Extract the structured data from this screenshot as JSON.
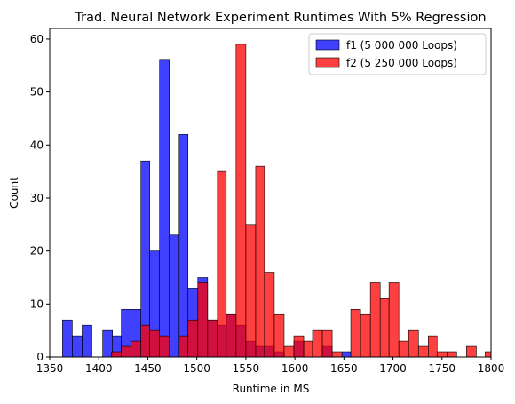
{
  "chart_data": {
    "type": "bar",
    "subtype": "overlaid-histogram",
    "title": "Trad. Neural Network Experiment Runtimes With 5% Regression",
    "xlabel": "Runtime in MS",
    "ylabel": "Count",
    "xlim": [
      1350,
      1800
    ],
    "ylim": [
      0,
      62
    ],
    "xticks": [
      "1350",
      "1400",
      "1450",
      "1500",
      "1550",
      "1600",
      "1650",
      "1700",
      "1750",
      "1800"
    ],
    "yticks": [
      "0",
      "10",
      "20",
      "30",
      "40",
      "50",
      "60"
    ],
    "grid": false,
    "legend_position": "top-right",
    "series": [
      {
        "name": "f1 (5 000 000 Loops)",
        "color": "#0000ff",
        "bins": [
          [
            1363,
            1373,
            7
          ],
          [
            1373,
            1383,
            4
          ],
          [
            1383,
            1393,
            6
          ],
          [
            1404,
            1414,
            5
          ],
          [
            1414,
            1423,
            4
          ],
          [
            1423,
            1433,
            9
          ],
          [
            1433,
            1443,
            9
          ],
          [
            1443,
            1452,
            37
          ],
          [
            1452,
            1462,
            20
          ],
          [
            1462,
            1472,
            56
          ],
          [
            1472,
            1482,
            23
          ],
          [
            1482,
            1491,
            42
          ],
          [
            1491,
            1501,
            13
          ],
          [
            1501,
            1511,
            15
          ],
          [
            1511,
            1521,
            7
          ],
          [
            1521,
            1530,
            6
          ],
          [
            1530,
            1540,
            8
          ],
          [
            1540,
            1550,
            6
          ],
          [
            1550,
            1560,
            3
          ],
          [
            1560,
            1569,
            2
          ],
          [
            1569,
            1579,
            2
          ],
          [
            1579,
            1589,
            1
          ],
          [
            1599,
            1609,
            3
          ],
          [
            1628,
            1638,
            2
          ],
          [
            1648,
            1657,
            1
          ]
        ]
      },
      {
        "name": "f2 (5 250 000 Loops)",
        "color": "#ff0000",
        "bins": [
          [
            1413,
            1423,
            1
          ],
          [
            1423,
            1433,
            2
          ],
          [
            1433,
            1443,
            3
          ],
          [
            1443,
            1452,
            6
          ],
          [
            1452,
            1462,
            5
          ],
          [
            1462,
            1472,
            4
          ],
          [
            1482,
            1491,
            4
          ],
          [
            1491,
            1501,
            7
          ],
          [
            1501,
            1511,
            14
          ],
          [
            1511,
            1521,
            7
          ],
          [
            1521,
            1530,
            35
          ],
          [
            1530,
            1540,
            8
          ],
          [
            1540,
            1550,
            59
          ],
          [
            1550,
            1560,
            25
          ],
          [
            1560,
            1569,
            36
          ],
          [
            1569,
            1579,
            16
          ],
          [
            1579,
            1589,
            8
          ],
          [
            1589,
            1599,
            2
          ],
          [
            1599,
            1609,
            4
          ],
          [
            1609,
            1618,
            3
          ],
          [
            1618,
            1628,
            5
          ],
          [
            1628,
            1638,
            5
          ],
          [
            1638,
            1648,
            1
          ],
          [
            1657,
            1667,
            9
          ],
          [
            1667,
            1677,
            8
          ],
          [
            1677,
            1687,
            14
          ],
          [
            1687,
            1696,
            11
          ],
          [
            1696,
            1706,
            14
          ],
          [
            1706,
            1716,
            3
          ],
          [
            1716,
            1726,
            5
          ],
          [
            1726,
            1736,
            2
          ],
          [
            1736,
            1745,
            4
          ],
          [
            1745,
            1755,
            1
          ],
          [
            1755,
            1765,
            1
          ],
          [
            1775,
            1785,
            2
          ],
          [
            1794,
            1804,
            1
          ]
        ]
      }
    ]
  }
}
